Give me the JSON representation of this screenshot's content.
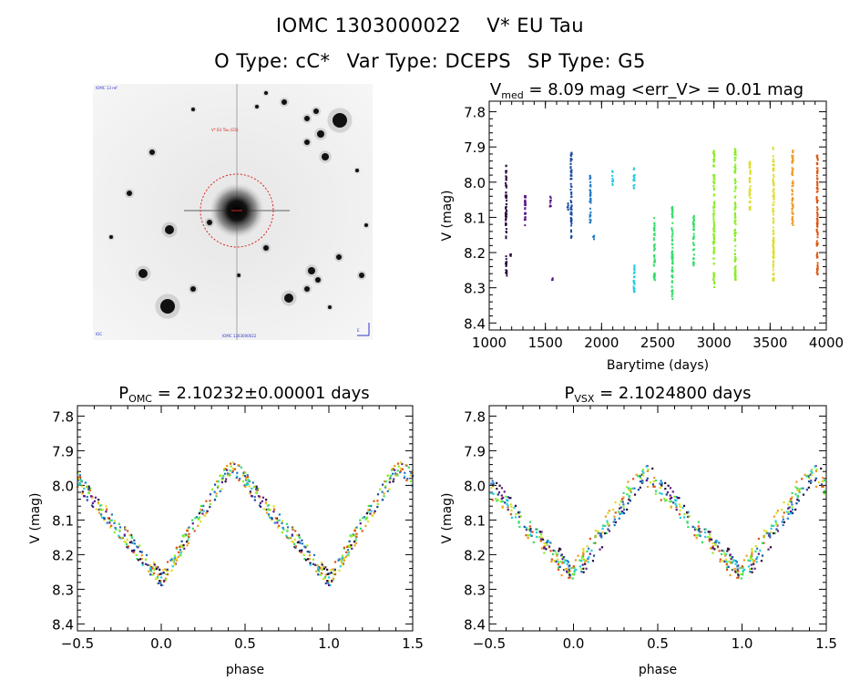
{
  "header": {
    "title_line1_name": "IOMC 1303000022",
    "title_line1_star": "V* EU Tau",
    "title_line2_otype": "O Type: cC*",
    "title_line2_vartype": "Var Type: DCEPS",
    "title_line2_sptype": "SP Type: G5"
  },
  "finder_chart": {
    "label_top_left": "IOMC 13 ref",
    "label_target": "V* EU Tau (G5)",
    "label_bottom_left": "IOC",
    "label_bottom_center": "IOMC 1303000022",
    "label_bottom_right": "E"
  },
  "colors": {
    "palette": [
      "#2a0a3a",
      "#5a1a8a",
      "#1a4aa0",
      "#1f78c8",
      "#22ccdd",
      "#33dd66",
      "#88ee22",
      "#dddd22",
      "#ee9922",
      "#dd5511"
    ]
  },
  "chart_data": [
    {
      "id": "lightcurve",
      "type": "scatter",
      "title_main": "V",
      "title_sub": "med",
      "title_rest": " = 8.09 mag <err_V> = 0.01 mag",
      "xlabel": "Barytime (days)",
      "ylabel": "V (mag)",
      "xlim": [
        1000,
        4000
      ],
      "ylim": [
        8.42,
        7.77
      ],
      "y_inverted": true,
      "xticks": [
        "1000",
        "1500",
        "2000",
        "2500",
        "3000",
        "3500",
        "4000"
      ],
      "yticks": [
        "7.8",
        "7.9",
        "8.0",
        "8.1",
        "8.2",
        "8.3",
        "8.4"
      ],
      "series": [
        {
          "x": 1150,
          "vmin": 7.95,
          "vmax": 8.16,
          "color_index": 0
        },
        {
          "x": 1152,
          "vmin": 8.21,
          "vmax": 8.28,
          "color_index": 0
        },
        {
          "x": 1190,
          "vmin": 8.2,
          "vmax": 8.21,
          "color_index": 0
        },
        {
          "x": 1320,
          "vmin": 8.03,
          "vmax": 8.13,
          "color_index": 1
        },
        {
          "x": 1545,
          "vmin": 8.04,
          "vmax": 8.07,
          "color_index": 1
        },
        {
          "x": 1560,
          "vmin": 8.27,
          "vmax": 8.28,
          "color_index": 1
        },
        {
          "x": 1700,
          "vmin": 8.06,
          "vmax": 8.08,
          "color_index": 2
        },
        {
          "x": 1730,
          "vmin": 7.91,
          "vmax": 8.16,
          "color_index": 2
        },
        {
          "x": 1900,
          "vmin": 7.98,
          "vmax": 8.12,
          "color_index": 3
        },
        {
          "x": 1930,
          "vmin": 8.15,
          "vmax": 8.17,
          "color_index": 3
        },
        {
          "x": 2100,
          "vmin": 7.96,
          "vmax": 8.01,
          "color_index": 4
        },
        {
          "x": 2290,
          "vmin": 7.96,
          "vmax": 8.02,
          "color_index": 4
        },
        {
          "x": 2290,
          "vmin": 8.23,
          "vmax": 8.32,
          "color_index": 4
        },
        {
          "x": 2470,
          "vmin": 8.1,
          "vmax": 8.28,
          "color_index": 5
        },
        {
          "x": 2630,
          "vmin": 8.07,
          "vmax": 8.34,
          "color_index": 5
        },
        {
          "x": 2820,
          "vmin": 8.09,
          "vmax": 8.24,
          "color_index": 5
        },
        {
          "x": 3000,
          "vmin": 7.91,
          "vmax": 8.3,
          "color_index": 6
        },
        {
          "x": 3190,
          "vmin": 7.9,
          "vmax": 8.29,
          "color_index": 6
        },
        {
          "x": 3320,
          "vmin": 7.93,
          "vmax": 8.08,
          "color_index": 7
        },
        {
          "x": 3530,
          "vmin": 7.9,
          "vmax": 8.28,
          "color_index": 7
        },
        {
          "x": 3700,
          "vmin": 7.9,
          "vmax": 8.13,
          "color_index": 8
        },
        {
          "x": 3920,
          "vmin": 7.92,
          "vmax": 8.27,
          "color_index": 9
        }
      ]
    },
    {
      "id": "phase_omc",
      "type": "scatter",
      "title_main": "P",
      "title_sub": "OMC",
      "title_rest": " = 2.10232±0.00001 days",
      "xlabel": "phase",
      "ylabel": "V (mag)",
      "xlim": [
        -0.5,
        1.5
      ],
      "ylim": [
        8.42,
        7.77
      ],
      "y_inverted": true,
      "xticks": [
        "−0.5",
        "0.0",
        "0.5",
        "1.0",
        "1.5"
      ],
      "yticks": [
        "7.8",
        "7.9",
        "8.0",
        "8.1",
        "8.2",
        "8.3",
        "8.4"
      ],
      "curve": {
        "min_mag": 7.94,
        "max_mag": 8.27,
        "max_phase": 0.0,
        "min_phase": 0.42
      },
      "points_per_cycle": 320
    },
    {
      "id": "phase_vsx",
      "type": "scatter",
      "title_main": "P",
      "title_sub": "VSX",
      "title_rest": " = 2.1024800 days",
      "xlabel": "phase",
      "ylabel": "V (mag)",
      "xlim": [
        -0.5,
        1.5
      ],
      "ylim": [
        8.42,
        7.77
      ],
      "y_inverted": true,
      "xticks": [
        "−0.5",
        "0.0",
        "0.5",
        "1.0",
        "1.5"
      ],
      "yticks": [
        "7.8",
        "7.9",
        "8.0",
        "8.1",
        "8.2",
        "8.3",
        "8.4"
      ],
      "curve": {
        "min_mag": 7.96,
        "max_mag": 8.26,
        "max_phase": 0.0,
        "min_phase": 0.42
      },
      "points_per_cycle": 320
    }
  ]
}
